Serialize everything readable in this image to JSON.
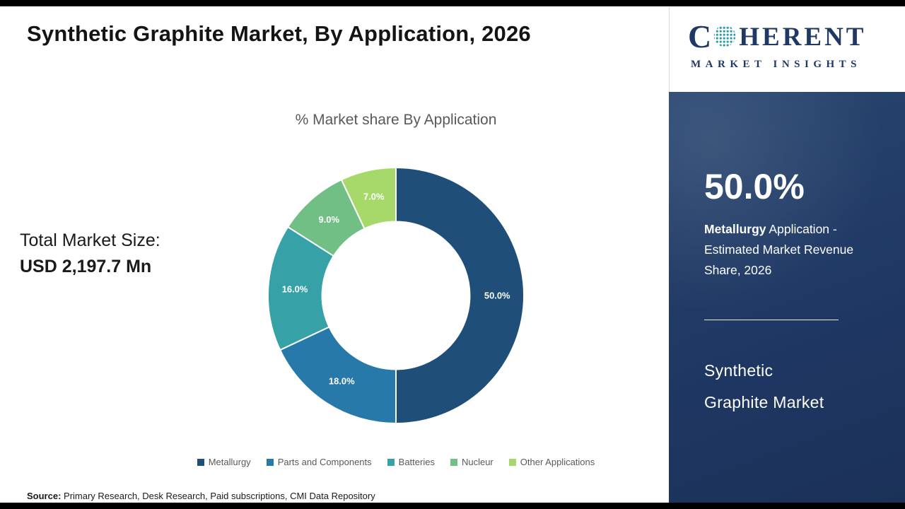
{
  "meta": {
    "title": "Synthetic Graphite Market, By Application, 2026"
  },
  "logo": {
    "c": "C",
    "rest": "HERENT",
    "tagline": "MARKET INSIGHTS"
  },
  "left_panel": {
    "total_label": "Total Market Size:",
    "total_value": "USD 2,197.7 Mn"
  },
  "chart_data": {
    "type": "pie",
    "donut": true,
    "title": "% Market share By Application",
    "categories": [
      "Metallurgy",
      "Parts and Components",
      "Batteries",
      "Nucleur",
      "Other Applications"
    ],
    "values": [
      50.0,
      18.0,
      16.0,
      9.0,
      7.0
    ],
    "labels": [
      "50.0%",
      "18.0%",
      "16.0%",
      "9.0%",
      "7.0%"
    ],
    "colors": [
      "#1f4e79",
      "#2679a8",
      "#36a2a8",
      "#71bf85",
      "#a6d96a"
    ],
    "unit": "%",
    "start_angle_deg": 0,
    "direction": "clockwise",
    "legend_position": "bottom"
  },
  "sidebar": {
    "stat_value": "50.0%",
    "stat_desc_bold": "Metallurgy",
    "stat_desc_rest": " Application - Estimated Market Revenue Share, 2026",
    "market_line1": "Synthetic",
    "market_line2": "Graphite Market"
  },
  "footer": {
    "source_label": "Source:",
    "source_text": " Primary Research, Desk Research, Paid subscriptions, CMI Data Repository"
  }
}
